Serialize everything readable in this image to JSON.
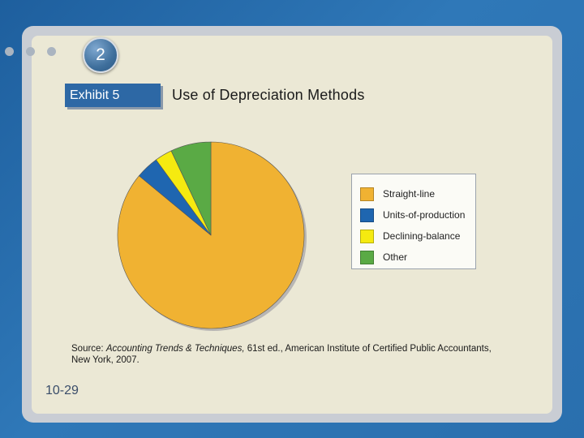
{
  "slide": {
    "step_number": "2",
    "exhibit_label": "Exhibit 5",
    "title": "Use of Depreciation Methods",
    "page_number": "10-29",
    "source_prefix": "Source: ",
    "source_italic": "Accounting Trends & Techniques,",
    "source_rest": " 61st ed., American Institute of Certified Public Accountants,",
    "source_line2": "New York, 2007."
  },
  "colors": {
    "background": "#2a6fae",
    "panel": "#ebe8d5",
    "exhibit_tab": "#2d68a5"
  },
  "chart_data": {
    "type": "pie",
    "title": "Use of Depreciation Methods",
    "legend_position": "right",
    "slices": [
      {
        "label": "Straight-line",
        "value": 86,
        "color": "#f0b232"
      },
      {
        "label": "Units-of-production",
        "value": 4,
        "color": "#1f66b0"
      },
      {
        "label": "Declining-balance",
        "value": 3,
        "color": "#f5ea10"
      },
      {
        "label": "Other",
        "value": 7,
        "color": "#5aaa45"
      }
    ]
  }
}
